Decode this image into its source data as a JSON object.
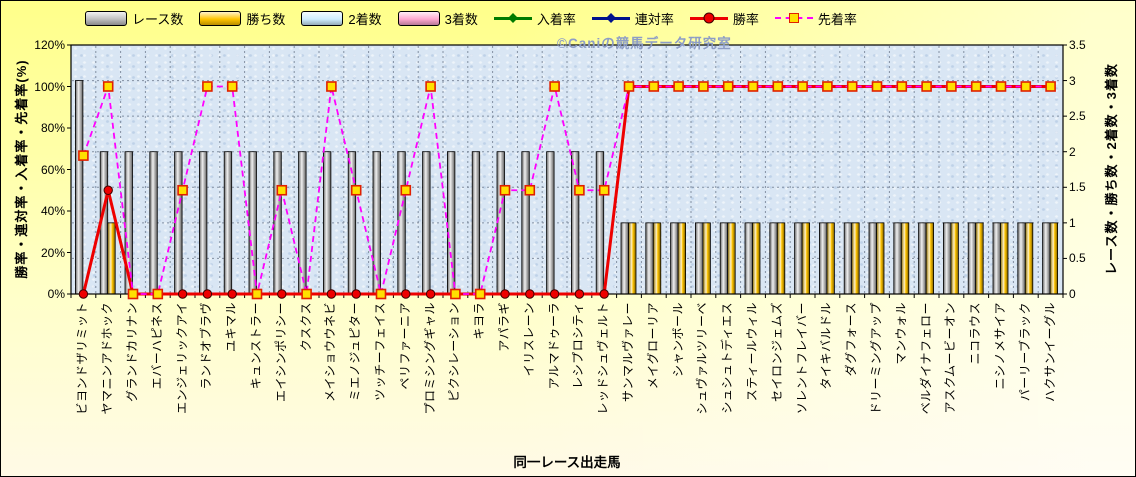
{
  "watermark": {
    "text": "©Caniの競馬データ研究室",
    "color": "#8d9dc6"
  },
  "chart_data": {
    "type": "bar+line combo",
    "legend_position": "top",
    "xlabel": "同一レース出走馬",
    "ylabel_left": "勝率・連対率・入着率・先着率(%)",
    "ylabel_right": "レース数・勝ち数・2着数・3着数",
    "yleft": {
      "min": 0,
      "max": 120,
      "step": 20,
      "unit": "%",
      "tick_labels": [
        "0%",
        "20%",
        "40%",
        "60%",
        "80%",
        "100%",
        "120%"
      ]
    },
    "yright": {
      "min": 0,
      "max": 3.5,
      "step": 0.5,
      "tick_labels": [
        "0",
        "0.5",
        "1",
        "1.5",
        "2",
        "2.5",
        "3",
        "3.5"
      ]
    },
    "grid": {
      "horizontal": "right-axis 0.5 steps, dotted",
      "vertical": "category boundaries, dotted"
    },
    "categories": [
      "ビヨンドザリミット",
      "ヤマニンアドホック",
      "グランドカリナン",
      "エバーハピネス",
      "エンジェリックアイ",
      "ランドオブラヴ",
      "ユキマル",
      "キュンストラー",
      "エイシンポリシー",
      "クスクス",
      "メイショウウネビ",
      "ミエノジュピター",
      "ツッチーフェイス",
      "ペリファーニア",
      "プロミシングギャル",
      "ピクシレーション",
      "キヨラ",
      "アパラギ",
      "イリスレーン",
      "アルマドゥーラ",
      "レシプロシティ",
      "レッドシュヴェルト",
      "サンマルヴァレー",
      "メイグローリア",
      "シャンボール",
      "シュヴァルツリーベ",
      "シュシュトディエス",
      "スティールウィル",
      "セイロンジェムズ",
      "ソレントフレイバー",
      "タイキバルドル",
      "ダグフォース",
      "ドリーミングアップ",
      "マンウォル",
      "ベルダイナフェロー",
      "アスクムービーオン",
      "ニコラウス",
      "ニシノメサイア",
      "パーリーブラック",
      "ハクサンイーグル"
    ],
    "series": [
      {
        "name": "レース数",
        "type": "bar",
        "axis": "right",
        "color": "#c0c0c0",
        "values": [
          3,
          2,
          2,
          2,
          2,
          2,
          2,
          2,
          2,
          2,
          2,
          2,
          2,
          2,
          2,
          2,
          2,
          2,
          2,
          2,
          2,
          2,
          1,
          1,
          1,
          1,
          1,
          1,
          1,
          1,
          1,
          1,
          1,
          1,
          1,
          1,
          1,
          1,
          1,
          1
        ]
      },
      {
        "name": "勝ち数",
        "type": "bar",
        "axis": "right",
        "color": "#ffc400",
        "values": [
          0,
          1,
          0,
          0,
          0,
          0,
          0,
          0,
          0,
          0,
          0,
          0,
          0,
          0,
          0,
          0,
          0,
          0,
          0,
          0,
          0,
          0,
          1,
          1,
          1,
          1,
          1,
          1,
          1,
          1,
          1,
          1,
          1,
          1,
          1,
          1,
          1,
          1,
          1,
          1
        ]
      },
      {
        "name": "2着数",
        "type": "bar",
        "axis": "right",
        "color": "#cfeeff",
        "values": [
          0,
          0,
          0,
          0,
          0,
          0,
          0,
          0,
          0,
          0,
          0,
          0,
          0,
          0,
          0,
          0,
          0,
          0,
          0,
          0,
          0,
          0,
          0,
          0,
          0,
          0,
          0,
          0,
          0,
          0,
          0,
          0,
          0,
          0,
          0,
          0,
          0,
          0,
          0,
          0
        ]
      },
      {
        "name": "3着数",
        "type": "bar",
        "axis": "right",
        "color": "#ffa8d0",
        "values": [
          0,
          0,
          0,
          0,
          0,
          0,
          0,
          0,
          0,
          0,
          0,
          0,
          0,
          0,
          0,
          0,
          0,
          0,
          0,
          0,
          0,
          0,
          0,
          0,
          0,
          0,
          0,
          0,
          0,
          0,
          0,
          0,
          0,
          0,
          0,
          0,
          0,
          0,
          0,
          0
        ]
      },
      {
        "name": "入着率",
        "type": "line",
        "axis": "left",
        "color": "#007a00",
        "marker": "diamond",
        "values": null
      },
      {
        "name": "連対率",
        "type": "line",
        "axis": "left",
        "color": "#00128c",
        "marker": "diamond",
        "values": null
      },
      {
        "name": "勝率",
        "type": "line",
        "axis": "left",
        "color": "#ee0000",
        "marker": "circle",
        "marker_fill": "#ee0000",
        "marker_stroke": "#3c0000",
        "width": 3,
        "unit": "%",
        "values": [
          0,
          50,
          0,
          0,
          0,
          0,
          0,
          0,
          0,
          0,
          0,
          0,
          0,
          0,
          0,
          0,
          0,
          0,
          0,
          0,
          0,
          0,
          100,
          100,
          100,
          100,
          100,
          100,
          100,
          100,
          100,
          100,
          100,
          100,
          100,
          100,
          100,
          100,
          100,
          100
        ]
      },
      {
        "name": "先着率",
        "type": "line",
        "axis": "left",
        "color": "#ff00ff",
        "marker": "square",
        "marker_fill": "#ffe000",
        "marker_stroke": "#e02000",
        "dash": true,
        "unit": "%",
        "values": [
          66.7,
          100,
          0,
          0,
          50,
          100,
          100,
          0,
          50,
          0,
          100,
          50,
          0,
          50,
          100,
          0,
          0,
          50,
          50,
          100,
          50,
          50,
          100,
          100,
          100,
          100,
          100,
          100,
          100,
          100,
          100,
          100,
          100,
          100,
          100,
          100,
          100,
          100,
          100,
          100
        ]
      }
    ]
  }
}
